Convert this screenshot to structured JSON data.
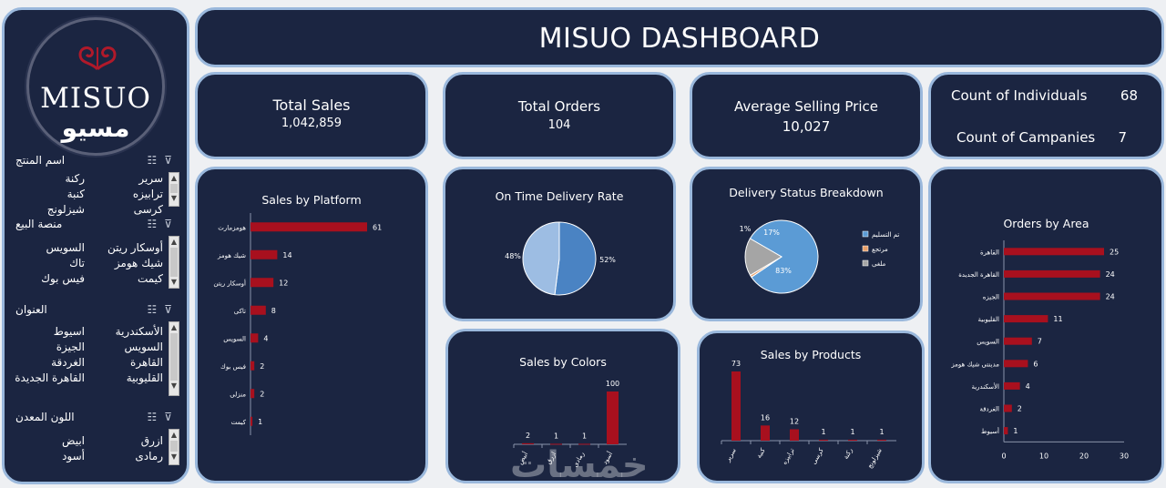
{
  "brand": {
    "name_en": "MISUO",
    "name_ar": "مسيو"
  },
  "header": {
    "title": "MISUO DASHBOARD"
  },
  "kpis": {
    "total_sales": {
      "label": "Total Sales",
      "value": "1,042,859"
    },
    "total_orders": {
      "label": "Total Orders",
      "value": "104"
    },
    "avg_price": {
      "label": "Average Selling Price",
      "value": "10,027"
    },
    "individuals": {
      "label": "Count of Individuals",
      "value": "68"
    },
    "companies": {
      "label": "Count of Campanies",
      "value": "7"
    }
  },
  "slicers": {
    "product": {
      "title": "اسم المنتج",
      "items": [
        "سرير",
        "ركنة",
        "ترابيزه",
        "كنبة",
        "كرسى",
        "شيزلونج"
      ]
    },
    "platform": {
      "title": "منصة البيع",
      "items": [
        "أوسكار ريتن",
        "السويس",
        "شيك هومز",
        "تاك",
        "كيمت",
        "فيس بوك"
      ]
    },
    "address": {
      "title": "العنوان",
      "items": [
        "الأسكندرية",
        "اسيوط",
        "السويس",
        "الجيزة",
        "القاهرة",
        "الغردقة",
        "القليوبية",
        "القاهرة الجديدة"
      ]
    },
    "color": {
      "title": "اللون المعدن",
      "items": [
        "ازرق",
        "ابيض",
        "رمادى",
        "أسود"
      ]
    }
  },
  "icons": {
    "filter": "filter-clear-icon",
    "multiselect": "multi-select-icon"
  },
  "colors": {
    "panel": "#1b2541",
    "border": "#9ab8dc",
    "bar": "#a8101e",
    "pie_dark": "#4a83c3",
    "pie_light": "#9dbde3"
  },
  "watermark": "خمسات",
  "chart_data": [
    {
      "id": "platform",
      "type": "bar",
      "orientation": "horizontal",
      "title": "Sales by Platform",
      "categories": [
        "هومزمارت",
        "شيك هومز",
        "أوسكار ريتن",
        "تاكى",
        "السويس",
        "فيس بوك",
        "منزلى",
        "كيمت"
      ],
      "values": [
        61,
        14,
        12,
        8,
        4,
        2,
        2,
        1
      ]
    },
    {
      "id": "ontime",
      "type": "pie",
      "title": "On Time Delivery Rate",
      "values": [
        52,
        48
      ],
      "labels": [
        "52%",
        "48%"
      ]
    },
    {
      "id": "status",
      "type": "pie",
      "title": "Delivery Status Breakdown",
      "categories": [
        "تم التسليم",
        "مرتجع",
        "ملغى"
      ],
      "values": [
        83,
        1,
        17
      ],
      "labels": [
        "83%",
        "1%",
        "17%"
      ],
      "colors": [
        "#5b9bd5",
        "#e8a06a",
        "#a5a5a5"
      ],
      "legend": "right"
    },
    {
      "id": "area",
      "type": "bar",
      "orientation": "horizontal",
      "title": "Orders by Area",
      "categories": [
        "القاهرة",
        "القاهرة الجديدة",
        "الجيزه",
        "القليوبية",
        "السويس",
        "مدينتى شيك هومز",
        "الأسكندرية",
        "الغردقة",
        "أسيوط"
      ],
      "values": [
        25,
        24,
        24,
        11,
        7,
        6,
        4,
        2,
        1
      ],
      "xticks": [
        "0",
        "10",
        "20",
        "30"
      ],
      "xlim": [
        0,
        30
      ]
    },
    {
      "id": "colors",
      "type": "bar",
      "title": "Sales by Colors",
      "categories": [
        "أبيض",
        "ازرق",
        "رمادى",
        "أسود"
      ],
      "values": [
        2,
        1,
        1,
        100
      ]
    },
    {
      "id": "products",
      "type": "bar",
      "title": "Sales by Products",
      "categories": [
        "سرير",
        "كنبة",
        "ترابيزه",
        "كرسى",
        "ركنة",
        "شيزلونج"
      ],
      "values": [
        73,
        16,
        12,
        1,
        1,
        1
      ]
    }
  ]
}
